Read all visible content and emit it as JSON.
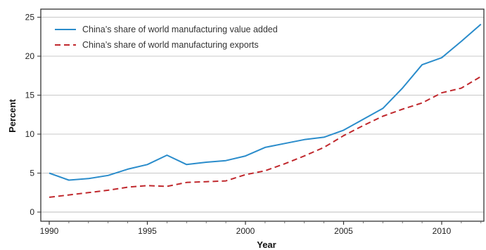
{
  "chart_data": {
    "type": "line",
    "title": "",
    "xlabel": "Year",
    "ylabel": "Percent",
    "xlim": [
      1990,
      2012
    ],
    "ylim": [
      0,
      25
    ],
    "x_ticks": [
      1990,
      1995,
      2000,
      2005,
      2010
    ],
    "y_ticks": [
      0,
      5,
      10,
      15,
      20,
      25
    ],
    "grid": "horizontal",
    "legend_position": "top-left",
    "x": [
      1990,
      1991,
      1992,
      1993,
      1994,
      1995,
      1996,
      1997,
      1998,
      1999,
      2000,
      2001,
      2002,
      2003,
      2004,
      2005,
      2006,
      2007,
      2008,
      2009,
      2010,
      2011,
      2012
    ],
    "series": [
      {
        "name": "China’s share of world manufacturing value added",
        "color": "#2a8ccb",
        "style": "solid",
        "values": [
          5.0,
          4.1,
          4.3,
          4.7,
          5.5,
          6.1,
          7.3,
          6.1,
          6.4,
          6.6,
          7.2,
          8.3,
          8.8,
          9.3,
          9.6,
          10.5,
          11.9,
          13.3,
          15.9,
          18.9,
          19.8,
          21.9,
          24.1
        ]
      },
      {
        "name": "China’s share of world manufacturing exports",
        "color": "#c0282d",
        "style": "dashed",
        "values": [
          1.9,
          2.2,
          2.5,
          2.8,
          3.2,
          3.4,
          3.3,
          3.8,
          3.9,
          4.0,
          4.8,
          5.3,
          6.2,
          7.2,
          8.3,
          9.8,
          11.1,
          12.3,
          13.2,
          14.0,
          15.3,
          15.9,
          17.4
        ]
      }
    ]
  }
}
